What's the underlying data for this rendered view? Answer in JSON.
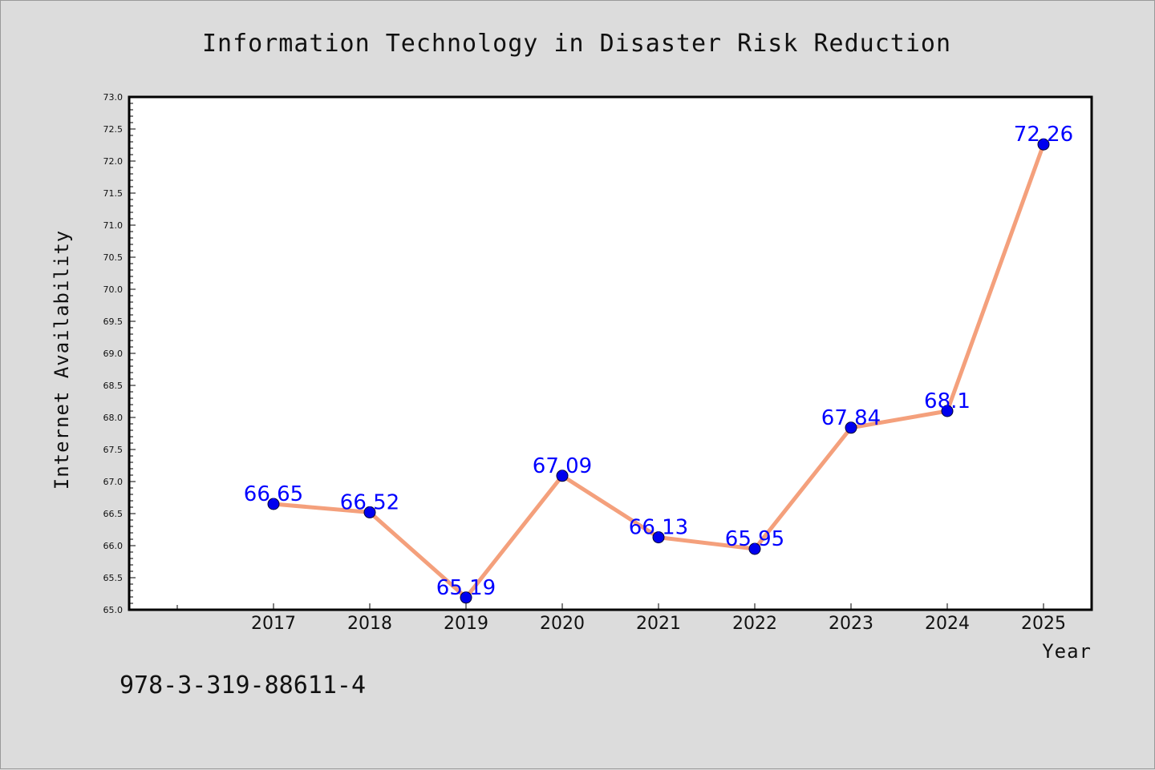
{
  "chart_data": {
    "type": "line",
    "title": "Information Technology in Disaster Risk Reduction",
    "xlabel": "Year",
    "ylabel": "Internet Availability",
    "categories": [
      "2017",
      "2018",
      "2019",
      "2020",
      "2021",
      "2022",
      "2023",
      "2024",
      "2025"
    ],
    "series": [
      {
        "values": [
          66.65,
          66.52,
          65.19,
          67.09,
          66.13,
          65.95,
          67.84,
          68.1,
          72.26
        ],
        "data_labels": [
          "66.65",
          "66.52",
          "65.19",
          "67.09",
          "66.13",
          "65.95",
          "67.84",
          "68.1",
          "72.26"
        ]
      }
    ],
    "ylim": [
      65.0,
      73.0
    ],
    "yticks": [
      "65.0",
      "65.5",
      "66.0",
      "66.5",
      "67.0",
      "67.5",
      "68.0",
      "68.5",
      "69.0",
      "69.5",
      "70.0",
      "70.5",
      "71.0",
      "71.5",
      "72.0",
      "72.5",
      "73.0"
    ],
    "grid": false,
    "colors": {
      "line": "#f4a07c",
      "marker": "#0000ee",
      "labels": "#0000ff",
      "plot_bg": "#ffffff",
      "page_bg": "#dcdcdc"
    }
  },
  "footer": {
    "isbn": "978-3-319-88611-4"
  }
}
